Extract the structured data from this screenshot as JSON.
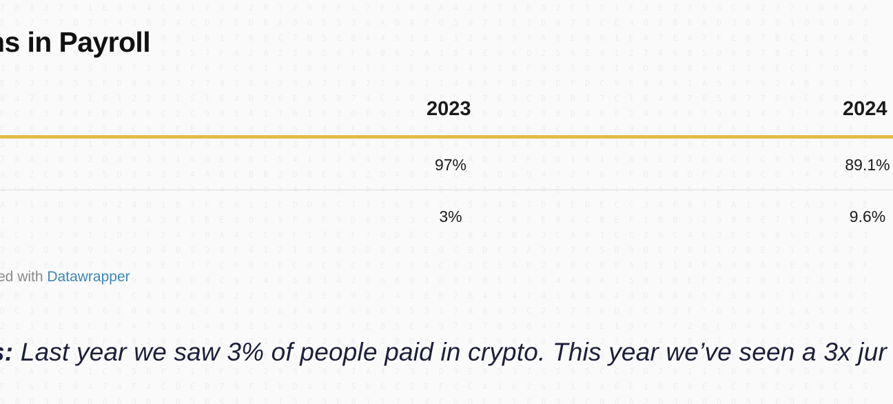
{
  "title": "ns in Payroll",
  "table": {
    "columns": [
      "2023",
      "2024"
    ],
    "rows": [
      {
        "values": [
          "97%",
          "89.1%"
        ]
      },
      {
        "values": [
          "3%",
          "9.6%"
        ]
      }
    ]
  },
  "credit": {
    "prefix": "ed with",
    "link_label": "Datawrapper"
  },
  "quote": {
    "lead": "s:",
    "text": "Last year we saw 3% of people paid in crypto. This year we’ve seen a 3x jur"
  },
  "colors": {
    "accent_rule": "#e5bb46",
    "link": "#3a87b8",
    "quote_text": "#1d1f3a"
  }
}
